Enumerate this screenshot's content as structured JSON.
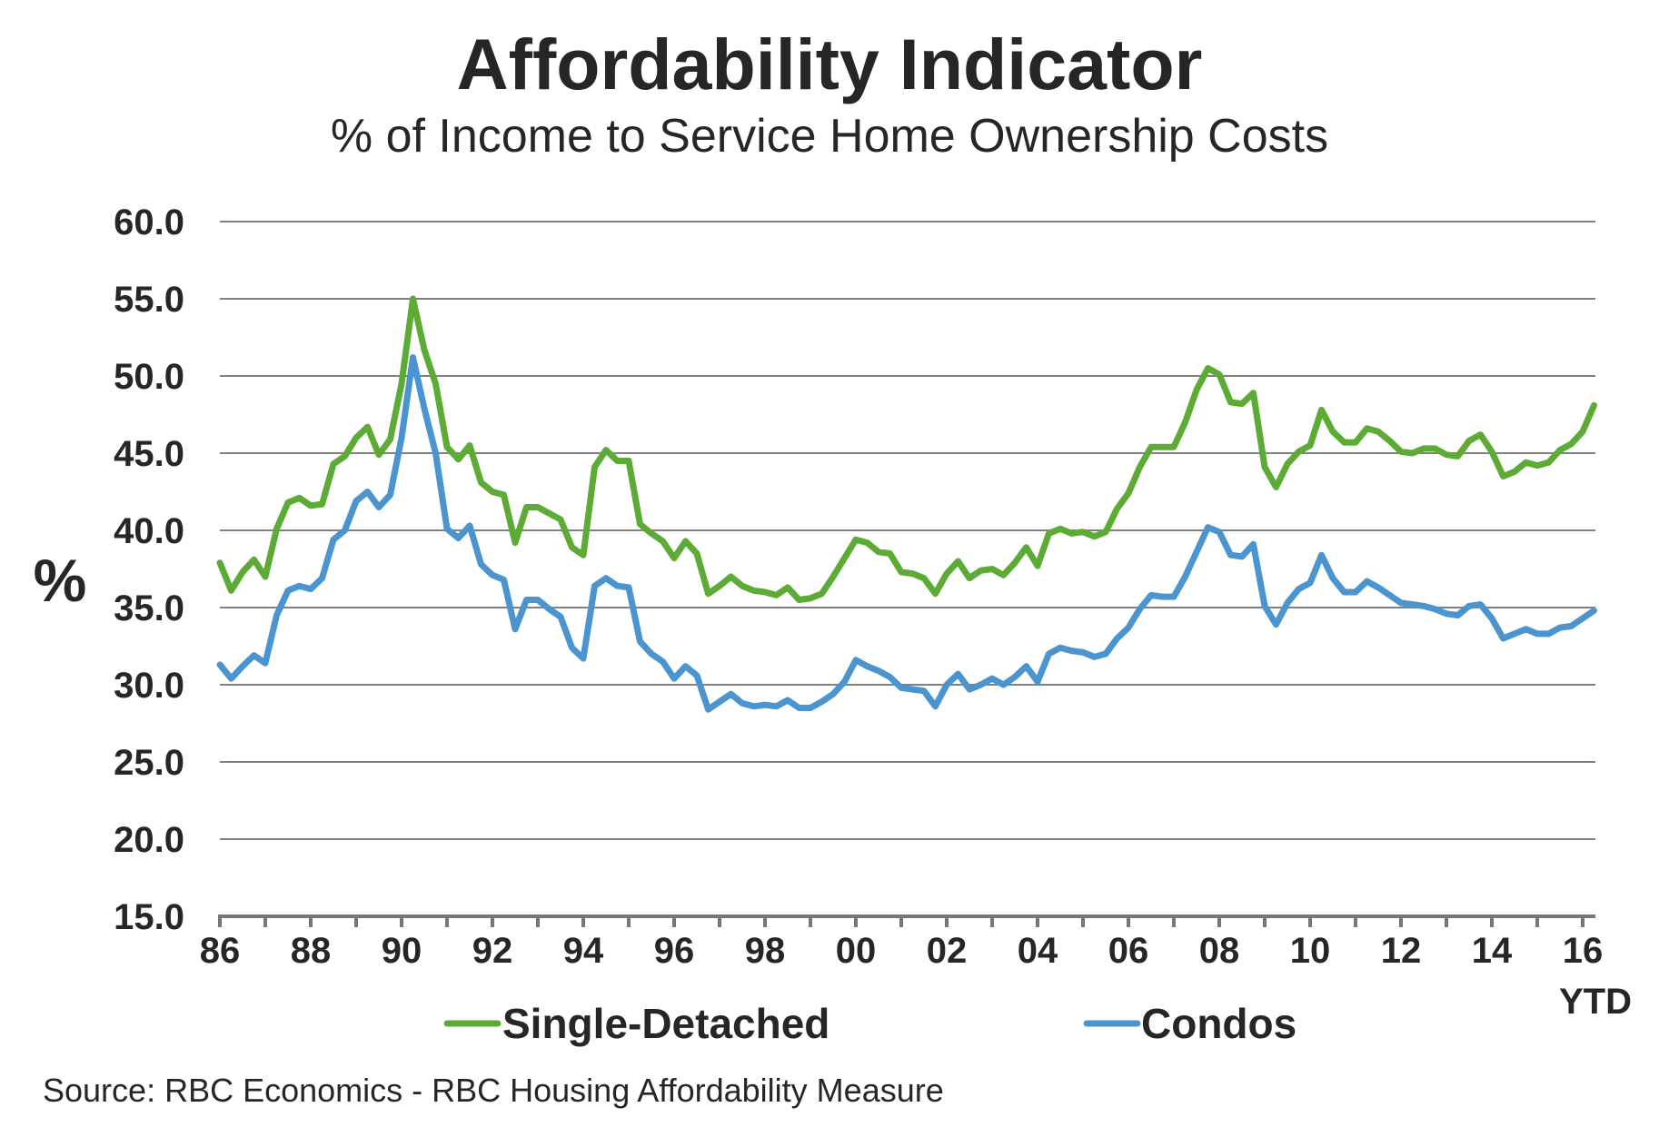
{
  "chart_data": {
    "type": "line",
    "title": "Affordability Indicator",
    "subtitle": "% of Income to Service Home Ownership Costs",
    "xlabel": "",
    "ylabel": "%",
    "ylim": [
      15.0,
      60.0
    ],
    "yticks": [
      "15.0",
      "20.0",
      "25.0",
      "30.0",
      "35.0",
      "40.0",
      "45.0",
      "50.0",
      "55.0",
      "60.0"
    ],
    "ytick_values": [
      15,
      20,
      25,
      30,
      35,
      40,
      45,
      50,
      55,
      60
    ],
    "xlim": [
      1986.0,
      1986.0
    ],
    "x_start_year": 1986,
    "x_end_year": 2016,
    "x_frequency": "quarterly",
    "xticks": [
      "86",
      "88",
      "90",
      "92",
      "94",
      "96",
      "98",
      "00",
      "02",
      "04",
      "06",
      "08",
      "10",
      "12",
      "14",
      "16"
    ],
    "xtick_years": [
      1986,
      1988,
      1990,
      1992,
      1994,
      1996,
      1998,
      2000,
      2002,
      2004,
      2006,
      2008,
      2010,
      2012,
      2014,
      2016
    ],
    "x_last_label_note": "YTD",
    "grid": true,
    "legend_position": "bottom",
    "series": [
      {
        "name": "Single-Detached",
        "color": "#5cab35",
        "values": [
          37.9,
          36.1,
          37.3,
          38.1,
          37.0,
          40.1,
          41.8,
          42.1,
          41.6,
          41.7,
          44.3,
          44.8,
          46.0,
          46.7,
          44.9,
          45.9,
          49.5,
          55.0,
          51.7,
          49.5,
          45.4,
          44.6,
          45.5,
          43.1,
          42.5,
          42.3,
          39.2,
          41.5,
          41.5,
          41.1,
          40.7,
          38.9,
          38.4,
          44.1,
          45.2,
          44.5,
          44.5,
          40.4,
          39.8,
          39.3,
          38.2,
          39.3,
          38.5,
          35.9,
          36.4,
          37.0,
          36.4,
          36.1,
          36.0,
          35.8,
          36.3,
          35.5,
          35.6,
          35.9,
          37.0,
          38.2,
          39.4,
          39.2,
          38.6,
          38.5,
          37.3,
          37.2,
          36.9,
          35.9,
          37.2,
          38.0,
          36.9,
          37.4,
          37.5,
          37.1,
          37.9,
          38.9,
          37.7,
          39.8,
          40.1,
          39.8,
          39.9,
          39.6,
          39.9,
          41.4,
          42.4,
          44.1,
          45.4,
          45.4,
          45.4,
          47.0,
          49.1,
          50.5,
          50.1,
          48.3,
          48.2,
          48.9,
          44.1,
          42.8,
          44.3,
          45.1,
          45.5,
          47.8,
          46.4,
          45.7,
          45.7,
          46.6,
          46.4,
          45.8,
          45.1,
          45.0,
          45.3,
          45.3,
          44.9,
          44.8,
          45.8,
          46.2,
          45.1,
          43.5,
          43.8,
          44.4,
          44.2,
          44.4,
          45.2,
          45.6,
          46.4,
          48.1
        ]
      },
      {
        "name": "Condos",
        "color": "#4a94cf",
        "values": [
          31.3,
          30.4,
          31.2,
          31.9,
          31.4,
          34.5,
          36.1,
          36.4,
          36.2,
          36.9,
          39.4,
          40.0,
          41.9,
          42.5,
          41.5,
          42.3,
          46.0,
          51.2,
          47.9,
          45.0,
          40.1,
          39.5,
          40.3,
          37.8,
          37.1,
          36.8,
          33.6,
          35.5,
          35.5,
          34.9,
          34.4,
          32.4,
          31.7,
          36.4,
          36.9,
          36.4,
          36.3,
          32.8,
          32.0,
          31.5,
          30.4,
          31.2,
          30.6,
          28.4,
          28.9,
          29.4,
          28.8,
          28.6,
          28.7,
          28.6,
          29.0,
          28.5,
          28.5,
          28.9,
          29.4,
          30.2,
          31.6,
          31.2,
          30.9,
          30.5,
          29.8,
          29.7,
          29.6,
          28.6,
          30.0,
          30.7,
          29.7,
          30.0,
          30.4,
          30.0,
          30.5,
          31.2,
          30.2,
          32.0,
          32.4,
          32.2,
          32.1,
          31.8,
          32.0,
          33.0,
          33.7,
          34.9,
          35.8,
          35.7,
          35.7,
          37.0,
          38.6,
          40.2,
          39.9,
          38.4,
          38.3,
          39.1,
          35.1,
          33.9,
          35.3,
          36.2,
          36.6,
          38.4,
          36.9,
          36.0,
          36.0,
          36.7,
          36.3,
          35.8,
          35.3,
          35.2,
          35.1,
          34.9,
          34.6,
          34.5,
          35.1,
          35.2,
          34.3,
          33.0,
          33.3,
          33.6,
          33.3,
          33.3,
          33.7,
          33.8,
          34.3,
          34.8
        ]
      }
    ],
    "source": "Source: RBC Economics - RBC Housing Affordability Measure"
  }
}
